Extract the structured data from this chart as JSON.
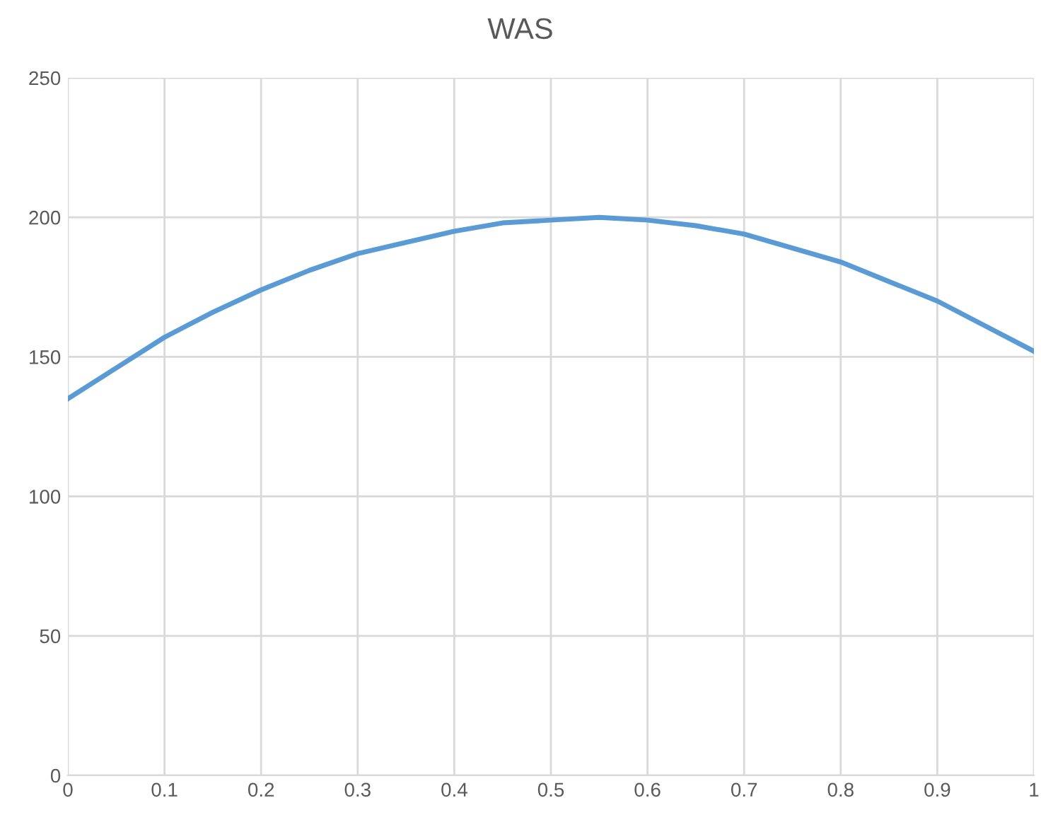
{
  "chart_data": {
    "type": "line",
    "title": "WAS",
    "x": [
      0,
      0.05,
      0.1,
      0.15,
      0.2,
      0.25,
      0.3,
      0.35,
      0.4,
      0.45,
      0.5,
      0.55,
      0.6,
      0.65,
      0.7,
      0.75,
      0.8,
      0.85,
      0.9,
      0.95,
      1
    ],
    "series": [
      {
        "color": "#5b9bd5",
        "values": [
          135,
          146,
          157,
          166,
          174,
          181,
          187,
          191,
          195,
          198,
          199,
          200,
          199,
          197,
          194,
          189,
          184,
          177,
          170,
          161,
          152
        ]
      }
    ],
    "xlim": [
      0,
      1
    ],
    "xticks": [
      0,
      0.1,
      0.2,
      0.3,
      0.4,
      0.5,
      0.6,
      0.7,
      0.8,
      0.9,
      1
    ],
    "ylim": [
      0,
      250
    ],
    "yticks": [
      0,
      50,
      100,
      150,
      200,
      250
    ],
    "grid": true,
    "marker": "none",
    "line_style": "solid"
  }
}
